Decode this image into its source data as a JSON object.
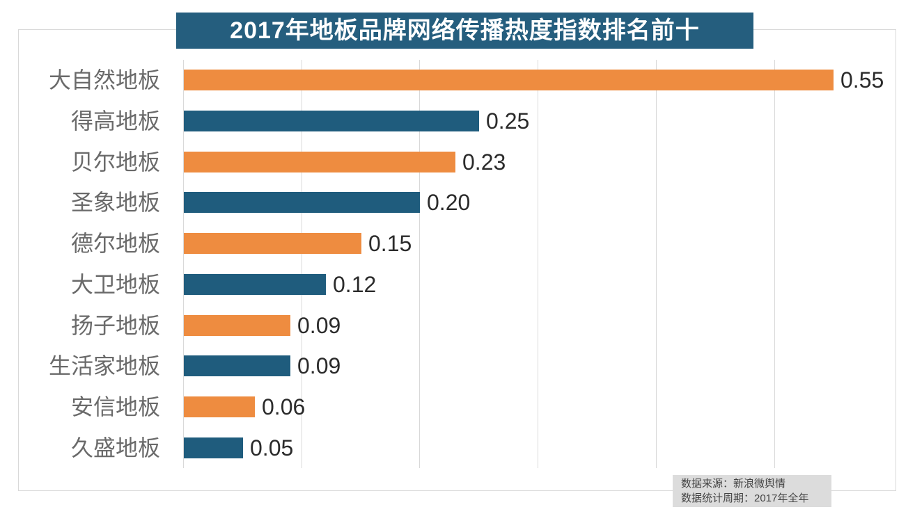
{
  "title": "2017年地板品牌网络传播热度指数排名前十",
  "colors": {
    "title_bg": "#255e7e",
    "bar_orange": "#ee8c40",
    "bar_blue": "#1f5c7d",
    "grid": "#d9d9d9",
    "category_label": "#6a6a6a",
    "value_label": "#2b2b2b",
    "footer_bg": "#dcdcdc",
    "footer_text": "#444444"
  },
  "chart_data": {
    "type": "bar",
    "orientation": "horizontal",
    "title": "2017年地板品牌网络传播热度指数排名前十",
    "categories": [
      "大自然地板",
      "得高地板",
      "贝尔地板",
      "圣象地板",
      "德尔地板",
      "大卫地板",
      "扬子地板",
      "生活家地板",
      "安信地板",
      "久盛地板"
    ],
    "values": [
      0.55,
      0.25,
      0.23,
      0.2,
      0.15,
      0.12,
      0.09,
      0.09,
      0.06,
      0.05
    ],
    "value_labels": [
      "0.55",
      "0.25",
      "0.23",
      "0.20",
      "0.15",
      "0.12",
      "0.09",
      "0.09",
      "0.06",
      "0.05"
    ],
    "bar_color_pattern": [
      "orange",
      "blue"
    ],
    "xlim": [
      0,
      0.6
    ],
    "gridline_interval": 0.1,
    "gridline_max": 0.5,
    "grid": true,
    "legend": false,
    "xlabel": "",
    "ylabel": ""
  },
  "footer": {
    "line1": "数据来源：新浪微舆情",
    "line2": "数据统计周期：2017年全年"
  }
}
